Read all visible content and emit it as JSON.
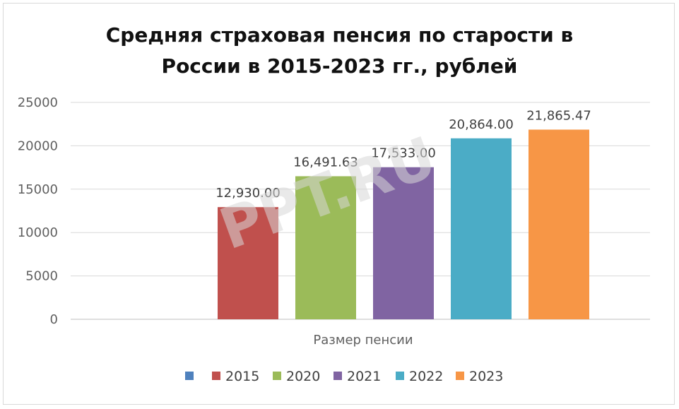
{
  "chart_data": {
    "type": "bar",
    "title_lines": [
      "Средняя страховая пенсия по старости в",
      "России в 2015-2023 гг., рублей"
    ],
    "xlabel": "Размер пенсии",
    "ylabel": "",
    "ylim": [
      0,
      25000
    ],
    "yticks": [
      0,
      5000,
      10000,
      15000,
      20000,
      25000
    ],
    "yticks_labels": [
      "0",
      "5000",
      "10000",
      "15000",
      "20000",
      "25000"
    ],
    "grid": true,
    "legend_position": "bottom",
    "categories": [
      "Размер пенсии"
    ],
    "series": [
      {
        "name": "",
        "values": [
          null
        ],
        "label": "",
        "color": "#4f81bd"
      },
      {
        "name": "2015",
        "values": [
          12930.0
        ],
        "label": "12,930.00",
        "color": "#c0504d"
      },
      {
        "name": "2020",
        "values": [
          16491.63
        ],
        "label": "16,491.63",
        "color": "#9bbb59"
      },
      {
        "name": "2021",
        "values": [
          17533.0
        ],
        "label": "17,533.00",
        "color": "#8064a2"
      },
      {
        "name": "2022",
        "values": [
          20864.0
        ],
        "label": "20,864.00",
        "color": "#4bacc6"
      },
      {
        "name": "2023",
        "values": [
          21865.47
        ],
        "label": "21,865.47",
        "color": "#f79646"
      }
    ],
    "watermark": "PPT.RU"
  }
}
